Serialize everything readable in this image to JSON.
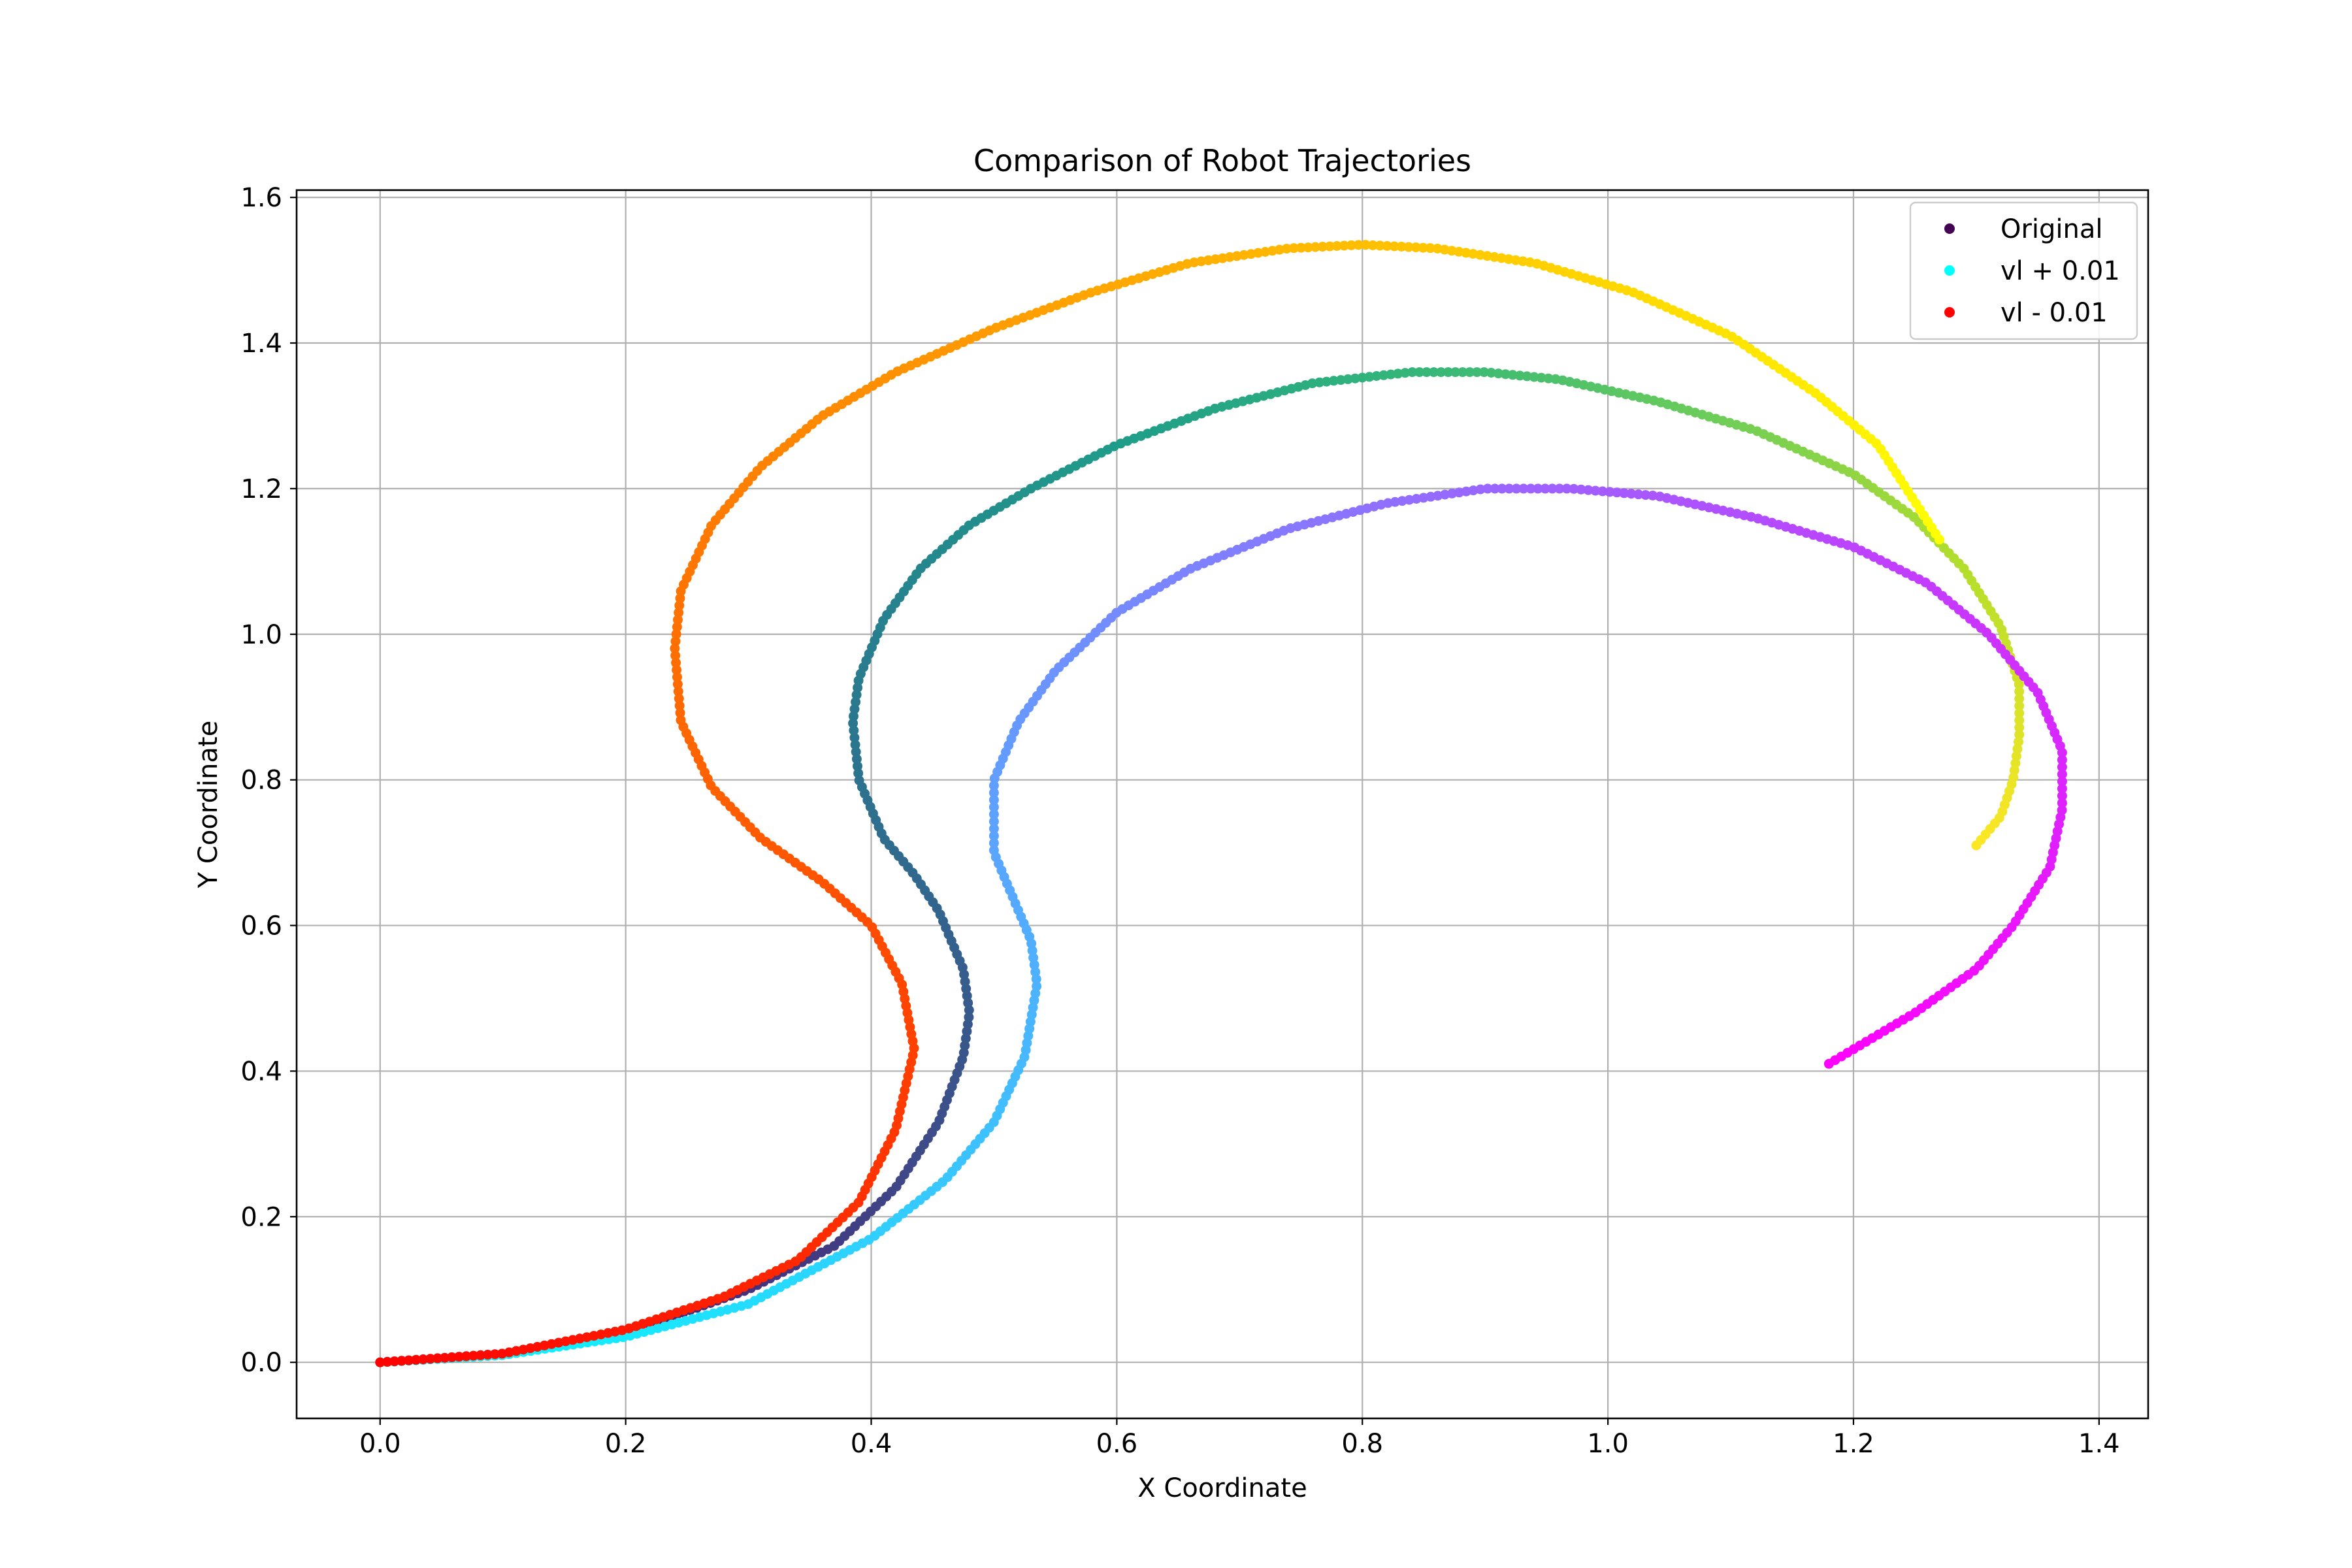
{
  "chart_data": {
    "type": "scatter",
    "title": "Comparison of Robot Trajectories",
    "xlabel": "X Coordinate",
    "ylabel": "Y Coordinate",
    "xlim": [
      -0.068,
      1.44
    ],
    "ylim": [
      -0.077,
      1.61
    ],
    "xticks": [
      0.0,
      0.2,
      0.4,
      0.6,
      0.8,
      1.0,
      1.2,
      1.4
    ],
    "xtick_labels": [
      "0.0",
      "0.2",
      "0.4",
      "0.6",
      "0.8",
      "1.0",
      "1.2",
      "1.4"
    ],
    "yticks": [
      0.0,
      0.2,
      0.4,
      0.6,
      0.8,
      1.0,
      1.2,
      1.4,
      1.6
    ],
    "ytick_labels": [
      "0.0",
      "0.2",
      "0.4",
      "0.6",
      "0.8",
      "1.0",
      "1.2",
      "1.4",
      "1.6"
    ],
    "grid": true,
    "legend_position": "top-right",
    "series": [
      {
        "name": "Original",
        "legend_color": "#440154",
        "colormap": "viridis",
        "points": [
          [
            0.0,
            0.0
          ],
          [
            0.1,
            0.01
          ],
          [
            0.2,
            0.04
          ],
          [
            0.3,
            0.1
          ],
          [
            0.37,
            0.16
          ],
          [
            0.42,
            0.24
          ],
          [
            0.455,
            0.33
          ],
          [
            0.475,
            0.42
          ],
          [
            0.48,
            0.48
          ],
          [
            0.475,
            0.54
          ],
          [
            0.455,
            0.62
          ],
          [
            0.435,
            0.67
          ],
          [
            0.41,
            0.72
          ],
          [
            0.39,
            0.8
          ],
          [
            0.385,
            0.88
          ],
          [
            0.39,
            0.94
          ],
          [
            0.41,
            1.02
          ],
          [
            0.44,
            1.09
          ],
          [
            0.48,
            1.15
          ],
          [
            0.53,
            1.2
          ],
          [
            0.6,
            1.26
          ],
          [
            0.68,
            1.31
          ],
          [
            0.76,
            1.345
          ],
          [
            0.84,
            1.36
          ],
          [
            0.9,
            1.36
          ],
          [
            0.96,
            1.35
          ],
          [
            1.04,
            1.32
          ],
          [
            1.12,
            1.28
          ],
          [
            1.2,
            1.22
          ],
          [
            1.25,
            1.16
          ],
          [
            1.29,
            1.09
          ],
          [
            1.32,
            1.01
          ],
          [
            1.335,
            0.93
          ],
          [
            1.335,
            0.86
          ],
          [
            1.33,
            0.8
          ],
          [
            1.32,
            0.75
          ],
          [
            1.3,
            0.71
          ]
        ]
      },
      {
        "name": "vl + 0.01",
        "legend_color": "#00ffff",
        "colormap": "cool",
        "points": [
          [
            0.0,
            0.0
          ],
          [
            0.1,
            0.01
          ],
          [
            0.2,
            0.035
          ],
          [
            0.3,
            0.08
          ],
          [
            0.4,
            0.17
          ],
          [
            0.46,
            0.25
          ],
          [
            0.5,
            0.33
          ],
          [
            0.525,
            0.42
          ],
          [
            0.535,
            0.52
          ],
          [
            0.53,
            0.58
          ],
          [
            0.52,
            0.62
          ],
          [
            0.5,
            0.7
          ],
          [
            0.5,
            0.8
          ],
          [
            0.52,
            0.88
          ],
          [
            0.55,
            0.95
          ],
          [
            0.6,
            1.03
          ],
          [
            0.66,
            1.09
          ],
          [
            0.74,
            1.145
          ],
          [
            0.82,
            1.18
          ],
          [
            0.9,
            1.2
          ],
          [
            0.97,
            1.2
          ],
          [
            1.04,
            1.19
          ],
          [
            1.12,
            1.16
          ],
          [
            1.2,
            1.12
          ],
          [
            1.26,
            1.07
          ],
          [
            1.31,
            1.0
          ],
          [
            1.35,
            0.92
          ],
          [
            1.37,
            0.84
          ],
          [
            1.37,
            0.76
          ],
          [
            1.36,
            0.68
          ],
          [
            1.33,
            0.6
          ],
          [
            1.3,
            0.54
          ],
          [
            1.25,
            0.48
          ],
          [
            1.21,
            0.44
          ],
          [
            1.18,
            0.41
          ]
        ]
      },
      {
        "name": "vl - 0.01",
        "legend_color": "#ff0000",
        "colormap": "autumn",
        "points": [
          [
            0.0,
            0.0
          ],
          [
            0.1,
            0.012
          ],
          [
            0.2,
            0.045
          ],
          [
            0.28,
            0.09
          ],
          [
            0.34,
            0.14
          ],
          [
            0.39,
            0.22
          ],
          [
            0.42,
            0.32
          ],
          [
            0.435,
            0.43
          ],
          [
            0.425,
            0.52
          ],
          [
            0.4,
            0.6
          ],
          [
            0.36,
            0.66
          ],
          [
            0.31,
            0.72
          ],
          [
            0.27,
            0.79
          ],
          [
            0.245,
            0.88
          ],
          [
            0.24,
            0.98
          ],
          [
            0.245,
            1.06
          ],
          [
            0.27,
            1.15
          ],
          [
            0.31,
            1.23
          ],
          [
            0.36,
            1.3
          ],
          [
            0.42,
            1.36
          ],
          [
            0.5,
            1.42
          ],
          [
            0.58,
            1.47
          ],
          [
            0.66,
            1.51
          ],
          [
            0.74,
            1.53
          ],
          [
            0.8,
            1.535
          ],
          [
            0.86,
            1.53
          ],
          [
            0.94,
            1.51
          ],
          [
            1.02,
            1.47
          ],
          [
            1.1,
            1.41
          ],
          [
            1.17,
            1.33
          ],
          [
            1.22,
            1.26
          ],
          [
            1.27,
            1.13
          ]
        ]
      }
    ]
  }
}
